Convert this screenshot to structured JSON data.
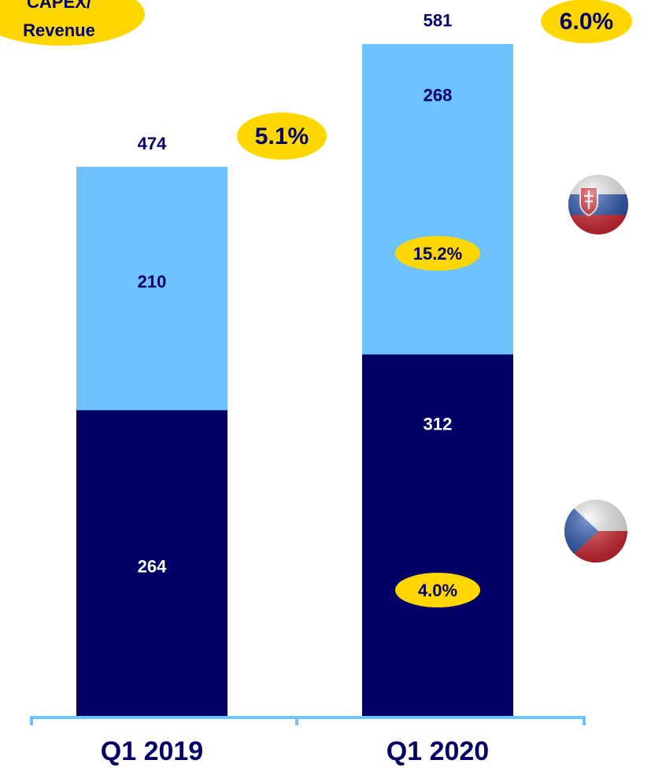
{
  "chart_data": {
    "type": "stacked_bar",
    "categories": [
      "Q1 2019",
      "Q1 2020"
    ],
    "series": [
      {
        "color": "#000066",
        "label_color": "#ffffff",
        "values": [
          264,
          312
        ]
      },
      {
        "color": "#6ec3ff",
        "label_color": "#000066",
        "values": [
          210,
          268
        ]
      }
    ],
    "totals": [
      474,
      581
    ],
    "ylim": [
      0,
      600
    ],
    "capex_label": [
      "CAPEX/",
      "Revenue"
    ],
    "ratio_totals": [
      "5.1%",
      "6.0%"
    ],
    "ratio_segments_2020": [
      "4.0%",
      "15.2%"
    ]
  }
}
